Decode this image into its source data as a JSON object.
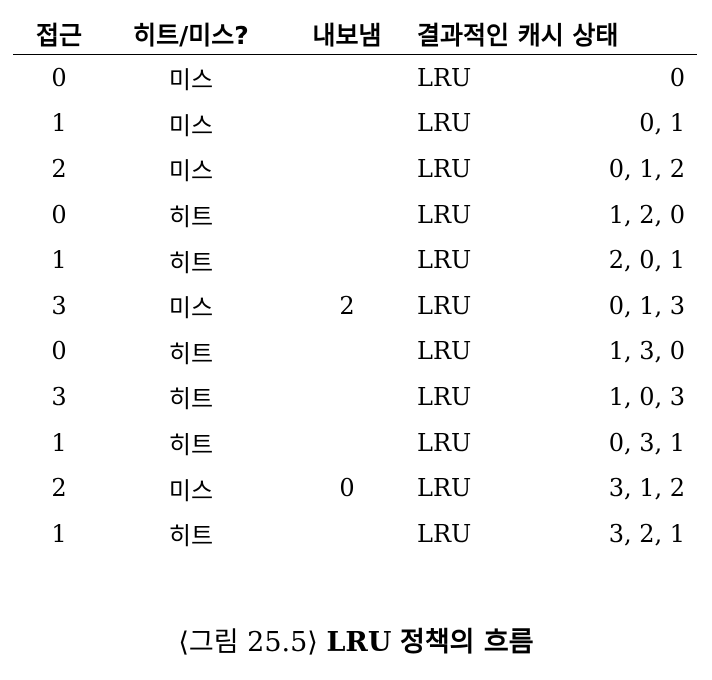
{
  "table": {
    "headers": [
      "접근",
      "히트/미스?",
      "내보냄",
      "결과적인 캐시 상태"
    ],
    "rows": [
      {
        "access": "0",
        "result": "미스",
        "evict": "",
        "policy": "LRU",
        "state": "0"
      },
      {
        "access": "1",
        "result": "미스",
        "evict": "",
        "policy": "LRU",
        "state": "0, 1"
      },
      {
        "access": "2",
        "result": "미스",
        "evict": "",
        "policy": "LRU",
        "state": "0, 1, 2"
      },
      {
        "access": "0",
        "result": "히트",
        "evict": "",
        "policy": "LRU",
        "state": "1, 2, 0"
      },
      {
        "access": "1",
        "result": "히트",
        "evict": "",
        "policy": "LRU",
        "state": "2, 0, 1"
      },
      {
        "access": "3",
        "result": "미스",
        "evict": "2",
        "policy": "LRU",
        "state": "0, 1, 3"
      },
      {
        "access": "0",
        "result": "히트",
        "evict": "",
        "policy": "LRU",
        "state": "1, 3, 0"
      },
      {
        "access": "3",
        "result": "히트",
        "evict": "",
        "policy": "LRU",
        "state": "1, 0, 3"
      },
      {
        "access": "1",
        "result": "히트",
        "evict": "",
        "policy": "LRU",
        "state": "0, 3, 1"
      },
      {
        "access": "2",
        "result": "미스",
        "evict": "0",
        "policy": "LRU",
        "state": "3, 1, 2"
      },
      {
        "access": "1",
        "result": "히트",
        "evict": "",
        "policy": "LRU",
        "state": "3, 2, 1"
      }
    ]
  },
  "caption": {
    "figure_label": "⟨그림 25.5⟩",
    "title_lru": "LRU",
    "title_rest": "정책의 흐름"
  }
}
